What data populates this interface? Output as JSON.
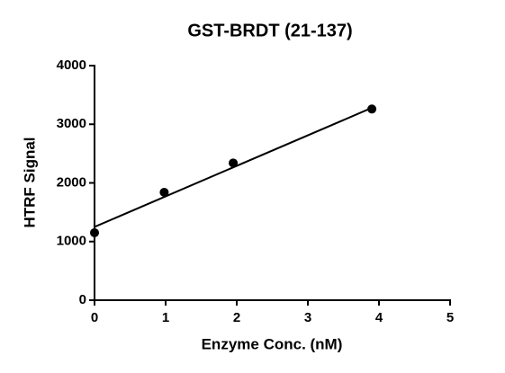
{
  "chart_data": {
    "type": "scatter",
    "title": "GST-BRDT (21-137)",
    "x_label": "Enzyme Conc. (nM)",
    "y_label": "HTRF Signal",
    "points": {
      "x": [
        0,
        0.98,
        1.95,
        3.9
      ],
      "values": [
        1150,
        1840,
        2340,
        3260
      ],
      "color": "#000000"
    },
    "fit_line": {
      "x": [
        0,
        3.9
      ],
      "values": [
        1250,
        3280
      ],
      "color": "#000000"
    },
    "xlim": [
      0,
      5
    ],
    "xticks": [
      0,
      1,
      2,
      3,
      4,
      5
    ],
    "ylim": [
      0,
      4000
    ],
    "yticks": [
      0,
      1000,
      2000,
      3000,
      4000
    ],
    "grid": false
  }
}
